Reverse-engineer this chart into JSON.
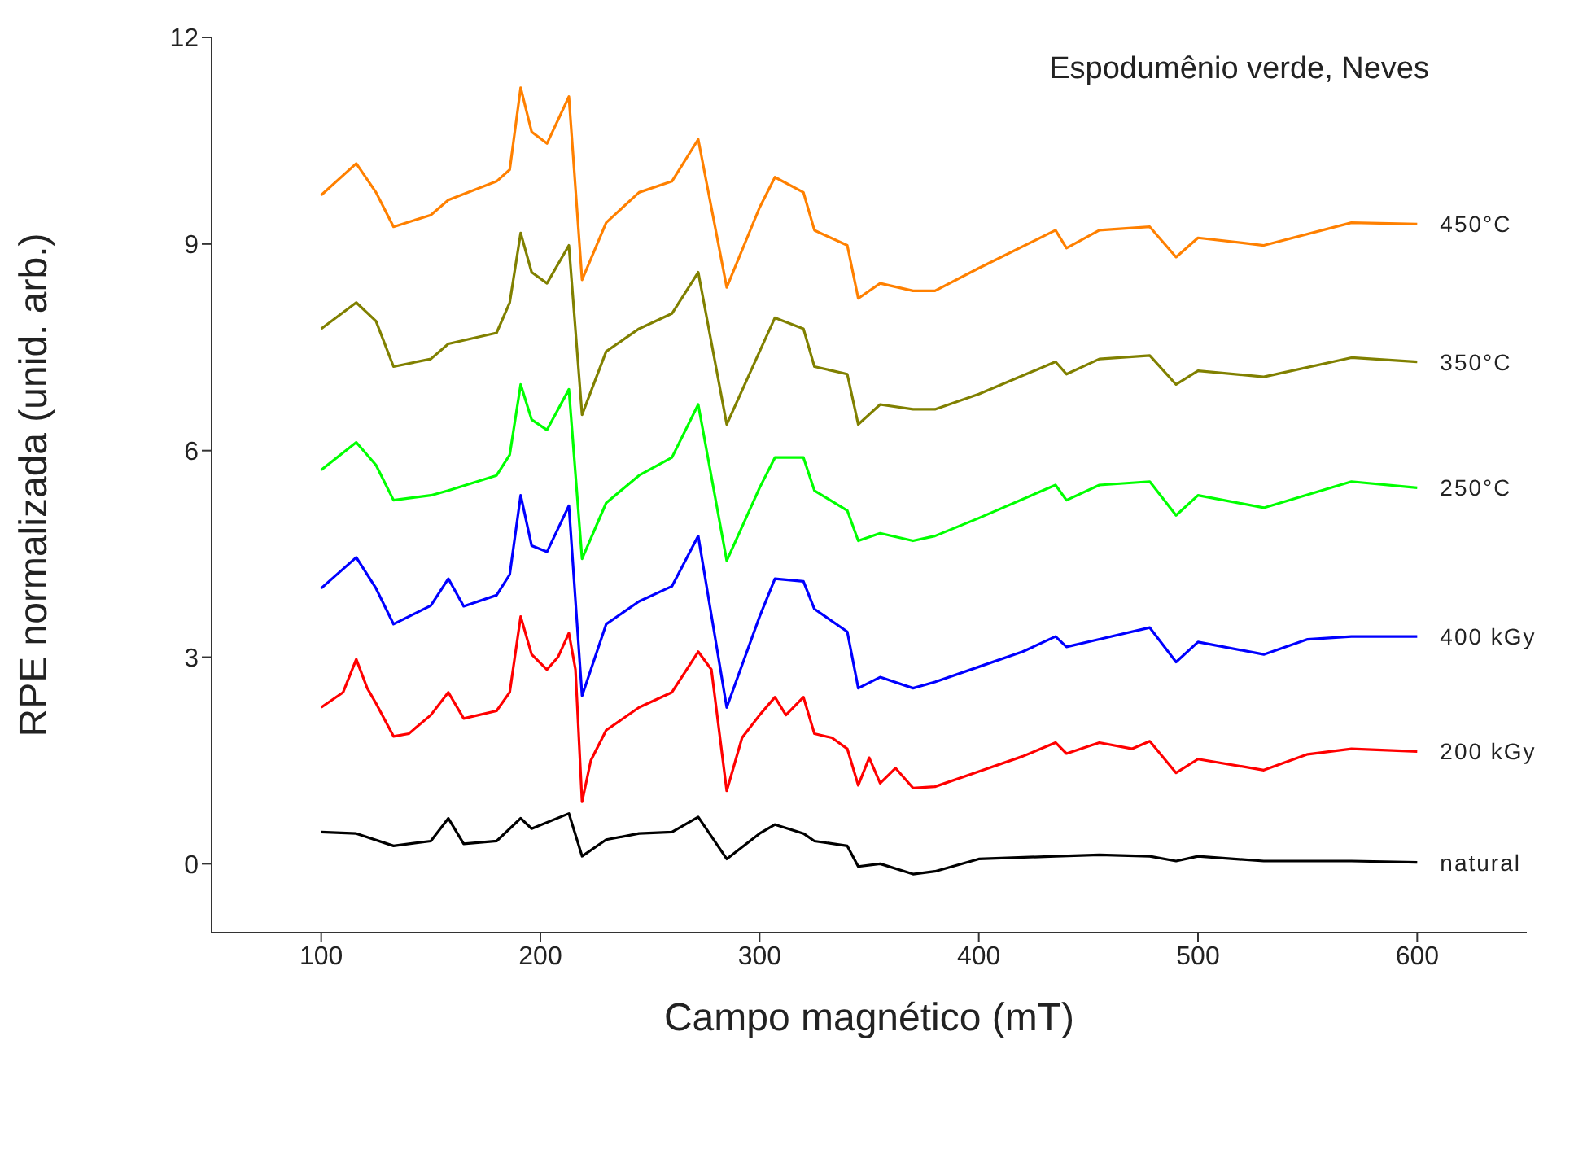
{
  "chart_data": {
    "type": "line",
    "title": "Espodumênio verde, Neves",
    "xlabel": "Campo magnético (mT)",
    "ylabel": "RPE normalizada (unid. arb.)",
    "xlim": [
      50,
      650
    ],
    "xticks": [
      100,
      200,
      300,
      400,
      500,
      600
    ],
    "ylim": [
      -1,
      12
    ],
    "yticks": [
      0,
      3,
      6,
      9,
      12
    ],
    "grid": false,
    "legend": false,
    "series": [
      {
        "name": "450°C",
        "color": "#ff8000",
        "x": [
          100,
          116,
          125,
          133,
          150,
          158,
          180,
          186,
          191,
          196,
          203,
          213,
          219,
          230,
          245,
          260,
          272,
          285,
          300,
          307,
          320,
          325,
          340,
          345,
          355,
          370,
          380,
          400,
          435,
          440,
          455,
          478,
          490,
          500,
          530,
          570,
          600
        ],
        "values": [
          9.71,
          10.17,
          9.75,
          9.25,
          9.42,
          9.64,
          9.91,
          10.08,
          11.27,
          10.63,
          10.46,
          11.14,
          8.48,
          9.31,
          9.75,
          9.91,
          10.52,
          8.37,
          9.53,
          9.97,
          9.75,
          9.2,
          8.98,
          8.21,
          8.43,
          8.32,
          8.32,
          8.65,
          9.2,
          8.94,
          9.2,
          9.25,
          8.81,
          9.09,
          8.98,
          9.31,
          9.29
        ]
      },
      {
        "name": "350°C",
        "color": "#808000",
        "x": [
          100,
          116,
          125,
          133,
          150,
          158,
          180,
          186,
          191,
          196,
          203,
          213,
          219,
          230,
          245,
          260,
          272,
          285,
          300,
          307,
          320,
          325,
          340,
          345,
          355,
          370,
          380,
          400,
          435,
          440,
          455,
          478,
          490,
          500,
          530,
          570,
          600
        ],
        "values": [
          7.77,
          8.15,
          7.88,
          7.22,
          7.33,
          7.55,
          7.71,
          8.15,
          9.16,
          8.59,
          8.43,
          8.98,
          6.52,
          7.44,
          7.77,
          7.99,
          8.59,
          6.38,
          7.44,
          7.93,
          7.77,
          7.22,
          7.11,
          6.38,
          6.67,
          6.6,
          6.6,
          6.82,
          7.29,
          7.11,
          7.33,
          7.38,
          6.96,
          7.16,
          7.07,
          7.35,
          7.29
        ]
      },
      {
        "name": "250°C",
        "color": "#00ff00",
        "x": [
          100,
          116,
          125,
          133,
          150,
          158,
          180,
          186,
          191,
          196,
          203,
          213,
          219,
          230,
          245,
          260,
          272,
          285,
          300,
          307,
          320,
          325,
          340,
          345,
          355,
          370,
          380,
          400,
          435,
          440,
          455,
          478,
          490,
          500,
          530,
          570,
          600
        ],
        "values": [
          5.72,
          6.12,
          5.79,
          5.28,
          5.35,
          5.42,
          5.64,
          5.94,
          6.96,
          6.45,
          6.3,
          6.89,
          4.43,
          5.24,
          5.64,
          5.9,
          6.67,
          4.4,
          5.46,
          5.9,
          5.9,
          5.42,
          5.13,
          4.69,
          4.8,
          4.69,
          4.76,
          5.02,
          5.5,
          5.28,
          5.5,
          5.55,
          5.06,
          5.35,
          5.17,
          5.55,
          5.46
        ]
      },
      {
        "name": "400 kGy",
        "color": "#0000ff",
        "x": [
          100,
          116,
          125,
          133,
          150,
          158,
          165,
          180,
          186,
          191,
          196,
          203,
          213,
          219,
          230,
          245,
          260,
          272,
          285,
          300,
          307,
          320,
          325,
          340,
          345,
          355,
          370,
          380,
          400,
          420,
          435,
          440,
          455,
          478,
          490,
          500,
          530,
          550,
          570,
          600
        ],
        "values": [
          4.0,
          4.45,
          4.0,
          3.48,
          3.75,
          4.14,
          3.74,
          3.9,
          4.2,
          5.35,
          4.62,
          4.53,
          5.2,
          2.44,
          3.48,
          3.81,
          4.03,
          4.76,
          2.27,
          3.59,
          4.14,
          4.1,
          3.7,
          3.37,
          2.55,
          2.71,
          2.55,
          2.64,
          2.86,
          3.08,
          3.3,
          3.15,
          3.26,
          3.43,
          2.93,
          3.22,
          3.04,
          3.26,
          3.3,
          3.3
        ]
      },
      {
        "name": "200 kGy",
        "color": "#ff0000",
        "x": [
          100,
          110,
          116,
          121,
          125,
          133,
          140,
          150,
          158,
          165,
          180,
          186,
          191,
          196,
          203,
          208,
          213,
          216,
          219,
          223,
          230,
          245,
          260,
          272,
          278,
          285,
          292,
          300,
          307,
          312,
          320,
          325,
          333,
          340,
          345,
          350,
          355,
          362,
          370,
          380,
          400,
          420,
          435,
          440,
          455,
          470,
          478,
          490,
          500,
          530,
          550,
          570,
          600
        ],
        "values": [
          2.27,
          2.49,
          2.97,
          2.55,
          2.33,
          1.85,
          1.89,
          2.16,
          2.49,
          2.11,
          2.22,
          2.49,
          3.59,
          3.04,
          2.82,
          3.0,
          3.35,
          2.82,
          0.9,
          1.5,
          1.94,
          2.27,
          2.49,
          3.08,
          2.82,
          1.06,
          1.83,
          2.16,
          2.42,
          2.16,
          2.42,
          1.89,
          1.83,
          1.67,
          1.14,
          1.54,
          1.17,
          1.39,
          1.1,
          1.12,
          1.34,
          1.56,
          1.76,
          1.6,
          1.76,
          1.67,
          1.78,
          1.32,
          1.52,
          1.36,
          1.59,
          1.67,
          1.63
        ]
      },
      {
        "name": "natural",
        "color": "#000000",
        "x": [
          100,
          116,
          133,
          150,
          158,
          165,
          180,
          191,
          196,
          213,
          219,
          230,
          245,
          260,
          272,
          285,
          300,
          307,
          320,
          325,
          340,
          345,
          355,
          370,
          380,
          400,
          435,
          455,
          478,
          490,
          500,
          530,
          570,
          600
        ],
        "values": [
          0.46,
          0.44,
          0.26,
          0.33,
          0.66,
          0.29,
          0.33,
          0.66,
          0.51,
          0.73,
          0.11,
          0.35,
          0.44,
          0.46,
          0.68,
          0.07,
          0.44,
          0.57,
          0.44,
          0.33,
          0.26,
          -0.04,
          0,
          -0.15,
          -0.11,
          0.07,
          0.11,
          0.13,
          0.11,
          0.04,
          0.11,
          0.04,
          0.04,
          0.02
        ]
      }
    ]
  }
}
